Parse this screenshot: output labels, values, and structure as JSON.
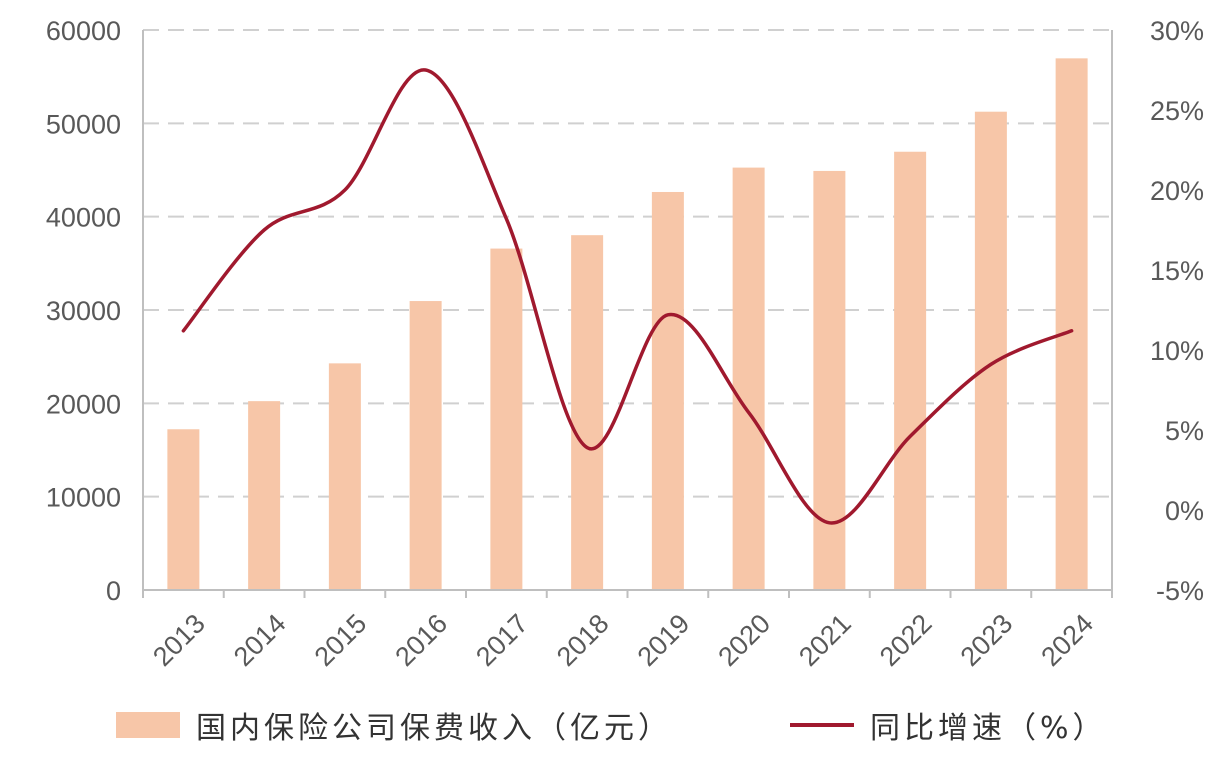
{
  "colors": {
    "bar": "#f7c6a8",
    "line": "#a0192e",
    "grid": "#d0d0d0",
    "text": "#595959"
  },
  "chart_data": {
    "type": "bar+line",
    "categories": [
      "2013",
      "2014",
      "2015",
      "2016",
      "2017",
      "2018",
      "2019",
      "2020",
      "2021",
      "2022",
      "2023",
      "2024"
    ],
    "series": [
      {
        "name": "国内保险公司保费收入（亿元）",
        "type": "bar",
        "axis": "left",
        "values": [
          17222,
          20235,
          24283,
          30959,
          36581,
          38017,
          42645,
          45257,
          44900,
          46957,
          51247,
          56963
        ]
      },
      {
        "name": "同比增速（%）",
        "type": "line",
        "axis": "right",
        "values": [
          11.2,
          17.5,
          20.0,
          27.5,
          18.2,
          3.9,
          12.2,
          6.1,
          -0.8,
          4.6,
          9.1,
          11.2
        ]
      }
    ],
    "left_axis": {
      "ylim": [
        0,
        60000
      ],
      "ticks": [
        "0",
        "10000",
        "20000",
        "30000",
        "40000",
        "50000",
        "60000"
      ]
    },
    "right_axis": {
      "ylim": [
        -5,
        30
      ],
      "ticks": [
        "-5%",
        "0%",
        "5%",
        "10%",
        "15%",
        "20%",
        "25%",
        "30%"
      ]
    },
    "grid": true,
    "legend_position": "bottom"
  }
}
